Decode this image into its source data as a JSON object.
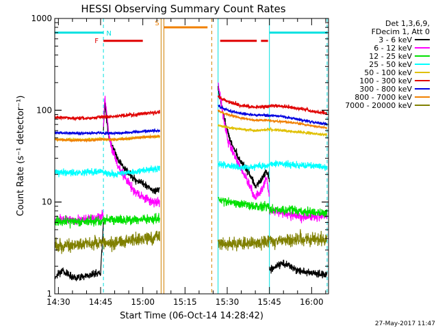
{
  "chart_data": {
    "type": "line",
    "title": "HESSI Observing Summary Count Rates",
    "xlabel": "Start Time (06-Oct-14 14:28:42)",
    "ylabel": "Count Rate (s⁻¹ detector⁻¹)",
    "y_scale": "log",
    "x_range": [
      "14:28:42",
      "16:06:00"
    ],
    "ylim": [
      1,
      1000
    ],
    "x_ticks": [
      "14:30",
      "14:45",
      "15:00",
      "15:15",
      "15:30",
      "15:45",
      "16:00"
    ],
    "y_ticks": [
      "1",
      "10",
      "100",
      "1000"
    ],
    "grid": false,
    "legend_position": "right",
    "footer": "27-May-2017 11:47",
    "legend_header": [
      "Det 1,3,6,9,",
      "FDecim 1, Att 0"
    ],
    "colors": {
      "flag_cyan": "#00e0e0",
      "flag_red": "#e00000",
      "flag_orange": "#f08000",
      "marker_cyan": "#00e0e0",
      "marker_orange": "#d08000"
    },
    "flags": [
      {
        "label": "N",
        "color": "#00e0e0",
        "y": 700,
        "start": "14:28:42",
        "end": "14:46:00"
      },
      {
        "label": "F",
        "color": "#e00000",
        "y": 570,
        "start": "14:46:00",
        "end": "15:00:00"
      },
      {
        "label": "S",
        "color": "#f08000",
        "y": 800,
        "start": "15:07:30",
        "end": "15:23:00"
      },
      {
        "label": "",
        "color": "#e00000",
        "y": 570,
        "start": "15:27:30",
        "end": "15:40:30"
      },
      {
        "label": "",
        "color": "#e00000",
        "y": 570,
        "start": "15:42:00",
        "end": "15:44:30"
      },
      {
        "label": "",
        "color": "#00e0e0",
        "y": 700,
        "start": "15:45:00",
        "end": "16:05:30"
      }
    ],
    "markers": [
      {
        "time": "14:28:42",
        "color": "#00e0e0",
        "style": "solid"
      },
      {
        "time": "14:46:00",
        "color": "#00e0e0",
        "style": "dashed"
      },
      {
        "time": "15:06:30",
        "color": "#d08000",
        "style": "solid"
      },
      {
        "time": "15:07:30",
        "color": "#d08000",
        "style": "solid"
      },
      {
        "time": "15:24:30",
        "color": "#d08000",
        "style": "dashed"
      },
      {
        "time": "15:26:45",
        "color": "#00e0e0",
        "style": "solid"
      },
      {
        "time": "15:45:00",
        "color": "#00e0e0",
        "style": "solid"
      },
      {
        "time": "16:05:30",
        "color": "#00e0e0",
        "style": "dashed"
      }
    ],
    "series": [
      {
        "name": "3 - 6 keV",
        "color": "#000000",
        "noise": 0.04,
        "segments": [
          [
            [
              "14:28:42",
              1.5
            ],
            [
              "14:31:00",
              1.8
            ],
            [
              "14:36:00",
              1.5
            ],
            [
              "14:41:00",
              1.6
            ],
            [
              "14:45:00",
              1.7
            ],
            [
              "14:46:00",
              6
            ]
          ],
          [
            [
              "14:46:00",
              60
            ],
            [
              "14:46:30",
              120
            ],
            [
              "14:48:00",
              50
            ],
            [
              "14:51:00",
              30
            ],
            [
              "14:54:00",
              22
            ],
            [
              "14:57:00",
              18
            ],
            [
              "15:00:00",
              16
            ],
            [
              "15:04:00",
              13
            ],
            [
              "15:06:00",
              14
            ]
          ],
          [
            [
              "15:26:45",
              170
            ],
            [
              "15:28:00",
              110
            ],
            [
              "15:30:00",
              60
            ],
            [
              "15:32:00",
              40
            ],
            [
              "15:34:00",
              30
            ],
            [
              "15:36:00",
              25
            ],
            [
              "15:38:00",
              20
            ],
            [
              "15:40:00",
              15
            ],
            [
              "15:42:00",
              17
            ],
            [
              "15:44:00",
              22
            ],
            [
              "15:45:00",
              18
            ]
          ],
          [
            [
              "15:45:00",
              1.8
            ],
            [
              "15:50:00",
              2.2
            ],
            [
              "15:55:00",
              1.8
            ],
            [
              "16:00:00",
              1.7
            ],
            [
              "16:05:30",
              1.6
            ]
          ]
        ]
      },
      {
        "name": "6 - 12 keV",
        "color": "#ff00ff",
        "noise": 0.05,
        "segments": [
          [
            [
              "14:28:42",
              6.5
            ],
            [
              "14:35:00",
              6.4
            ],
            [
              "14:41:00",
              6.5
            ],
            [
              "14:46:00",
              7
            ]
          ],
          [
            [
              "14:46:00",
              70
            ],
            [
              "14:46:30",
              150
            ],
            [
              "14:48:00",
              50
            ],
            [
              "14:51:00",
              25
            ],
            [
              "14:54:00",
              18
            ],
            [
              "14:57:00",
              13
            ],
            [
              "15:00:00",
              11
            ],
            [
              "15:04:00",
              10
            ],
            [
              "15:06:00",
              10
            ]
          ],
          [
            [
              "15:26:45",
              200
            ],
            [
              "15:28:00",
              110
            ],
            [
              "15:30:00",
              50
            ],
            [
              "15:32:00",
              35
            ],
            [
              "15:34:00",
              26
            ],
            [
              "15:36:00",
              20
            ],
            [
              "15:38:00",
              15
            ],
            [
              "15:40:00",
              11
            ],
            [
              "15:42:00",
              13
            ],
            [
              "15:44:00",
              18
            ],
            [
              "15:45:00",
              12
            ]
          ],
          [
            [
              "15:45:00",
              8
            ],
            [
              "15:50:00",
              7.5
            ],
            [
              "15:55:00",
              7
            ],
            [
              "16:00:00",
              7
            ],
            [
              "16:05:30",
              7
            ]
          ]
        ]
      },
      {
        "name": "12 - 25 keV",
        "color": "#00e000",
        "noise": 0.05,
        "segments": [
          [
            [
              "14:28:42",
              6.2
            ],
            [
              "14:35:00",
              6.2
            ],
            [
              "14:41:00",
              6.1
            ],
            [
              "14:46:00",
              6.3
            ]
          ],
          [
            [
              "14:46:00",
              6.3
            ],
            [
              "14:50:00",
              6.4
            ],
            [
              "14:55:00",
              6.4
            ],
            [
              "15:00:00",
              6.5
            ],
            [
              "15:06:00",
              6.5
            ]
          ],
          [
            [
              "15:26:45",
              11
            ],
            [
              "15:30:00",
              10
            ],
            [
              "15:35:00",
              9.5
            ],
            [
              "15:40:00",
              9
            ],
            [
              "15:45:00",
              9
            ]
          ],
          [
            [
              "15:45:00",
              8.5
            ],
            [
              "15:50:00",
              8.2
            ],
            [
              "15:55:00",
              8
            ],
            [
              "16:00:00",
              7.8
            ],
            [
              "16:05:30",
              7.5
            ]
          ]
        ]
      },
      {
        "name": "25 - 50 keV",
        "color": "#00ffff",
        "noise": 0.035,
        "segments": [
          [
            [
              "14:28:42",
              21
            ],
            [
              "14:35:00",
              21
            ],
            [
              "14:41:00",
              21
            ],
            [
              "14:46:00",
              22
            ]
          ],
          [
            [
              "14:46:00",
              21
            ],
            [
              "14:50:00",
              20
            ],
            [
              "14:55:00",
              21
            ],
            [
              "15:00:00",
              22
            ],
            [
              "15:06:00",
              23
            ]
          ],
          [
            [
              "15:26:45",
              26
            ],
            [
              "15:30:00",
              25
            ],
            [
              "15:35:00",
              24
            ],
            [
              "15:40:00",
              24
            ],
            [
              "15:45:00",
              25
            ]
          ],
          [
            [
              "15:45:00",
              26
            ],
            [
              "15:50:00",
              26
            ],
            [
              "15:55:00",
              25
            ],
            [
              "16:00:00",
              25
            ],
            [
              "16:05:30",
              24
            ]
          ]
        ]
      },
      {
        "name": "50 - 100 keV",
        "color": "#e0c000",
        "noise": 0.015,
        "segments": [
          [
            [
              "14:28:42",
              48
            ],
            [
              "14:35:00",
              48
            ],
            [
              "14:41:00",
              48
            ],
            [
              "14:46:00",
              49
            ]
          ],
          [
            [
              "14:46:00",
              48
            ],
            [
              "14:50:00",
              48
            ],
            [
              "14:55:00",
              49
            ],
            [
              "15:00:00",
              51
            ],
            [
              "15:06:00",
              52
            ]
          ],
          [
            [
              "15:26:45",
              68
            ],
            [
              "15:30:00",
              65
            ],
            [
              "15:35:00",
              62
            ],
            [
              "15:40:00",
              60
            ],
            [
              "15:45:00",
              62
            ]
          ],
          [
            [
              "15:45:00",
              62
            ],
            [
              "15:50:00",
              60
            ],
            [
              "15:55:00",
              58
            ],
            [
              "16:00:00",
              56
            ],
            [
              "16:05:30",
              54
            ]
          ]
        ]
      },
      {
        "name": "100 - 300 keV",
        "color": "#e00000",
        "noise": 0.02,
        "segments": [
          [
            [
              "14:28:42",
              84
            ],
            [
              "14:35:00",
              82
            ],
            [
              "14:41:00",
              82
            ],
            [
              "14:46:00",
              85
            ]
          ],
          [
            [
              "14:46:00",
              84
            ],
            [
              "14:50:00",
              85
            ],
            [
              "14:55:00",
              88
            ],
            [
              "15:00:00",
              92
            ],
            [
              "15:06:00",
              95
            ]
          ],
          [
            [
              "15:26:45",
              140
            ],
            [
              "15:30:00",
              125
            ],
            [
              "15:35:00",
              112
            ],
            [
              "15:40:00",
              108
            ],
            [
              "15:45:00",
              110
            ]
          ],
          [
            [
              "15:45:00",
              112
            ],
            [
              "15:50:00",
              110
            ],
            [
              "15:55:00",
              105
            ],
            [
              "16:00:00",
              98
            ],
            [
              "16:05:30",
              92
            ]
          ]
        ]
      },
      {
        "name": "300 - 800 keV",
        "color": "#0000e0",
        "noise": 0.015,
        "segments": [
          [
            [
              "14:28:42",
              57
            ],
            [
              "14:35:00",
              56
            ],
            [
              "14:41:00",
              56
            ],
            [
              "14:46:00",
              57
            ]
          ],
          [
            [
              "14:46:00",
              56
            ],
            [
              "14:50:00",
              56
            ],
            [
              "14:55:00",
              57
            ],
            [
              "15:00:00",
              59
            ],
            [
              "15:06:00",
              60
            ]
          ],
          [
            [
              "15:26:45",
              112
            ],
            [
              "15:30:00",
              100
            ],
            [
              "15:35:00",
              92
            ],
            [
              "15:40:00",
              88
            ],
            [
              "15:45:00",
              88
            ]
          ],
          [
            [
              "15:45:00",
              88
            ],
            [
              "15:50:00",
              85
            ],
            [
              "15:55:00",
              80
            ],
            [
              "16:00:00",
              75
            ],
            [
              "16:05:30",
              70
            ]
          ]
        ]
      },
      {
        "name": "800 - 7000 keV",
        "color": "#f08000",
        "noise": 0.012,
        "segments": [
          [
            [
              "14:28:42",
              48
            ],
            [
              "14:35:00",
              47
            ],
            [
              "14:41:00",
              47
            ],
            [
              "14:46:00",
              48
            ]
          ],
          [
            [
              "14:46:00",
              48
            ],
            [
              "14:50:00",
              48
            ],
            [
              "14:55:00",
              49
            ],
            [
              "15:00:00",
              51
            ],
            [
              "15:06:00",
              52
            ]
          ],
          [
            [
              "15:26:45",
              98
            ],
            [
              "15:30:00",
              90
            ],
            [
              "15:35:00",
              82
            ],
            [
              "15:40:00",
              78
            ],
            [
              "15:45:00",
              78
            ]
          ],
          [
            [
              "15:45:00",
              77
            ],
            [
              "15:50:00",
              75
            ],
            [
              "15:55:00",
              72
            ],
            [
              "16:00:00",
              68
            ],
            [
              "16:05:30",
              64
            ]
          ]
        ]
      },
      {
        "name": "7000 - 20000 keV",
        "color": "#808000",
        "noise": 0.07,
        "segments": [
          [
            [
              "14:28:42",
              3.3
            ],
            [
              "14:35:00",
              3.4
            ],
            [
              "14:41:00",
              3.5
            ],
            [
              "14:46:00",
              3.6
            ]
          ],
          [
            [
              "14:46:00",
              3.5
            ],
            [
              "14:50:00",
              3.6
            ],
            [
              "14:55:00",
              3.8
            ],
            [
              "15:00:00",
              4.0
            ],
            [
              "15:06:00",
              4.2
            ]
          ],
          [
            [
              "15:26:45",
              3.6
            ],
            [
              "15:30:00",
              3.5
            ],
            [
              "15:35:00",
              3.5
            ],
            [
              "15:40:00",
              3.6
            ],
            [
              "15:45:00",
              3.7
            ]
          ],
          [
            [
              "15:45:00",
              3.8
            ],
            [
              "15:50:00",
              3.8
            ],
            [
              "15:55:00",
              3.9
            ],
            [
              "16:00:00",
              3.9
            ],
            [
              "16:05:30",
              3.9
            ]
          ]
        ]
      }
    ]
  }
}
